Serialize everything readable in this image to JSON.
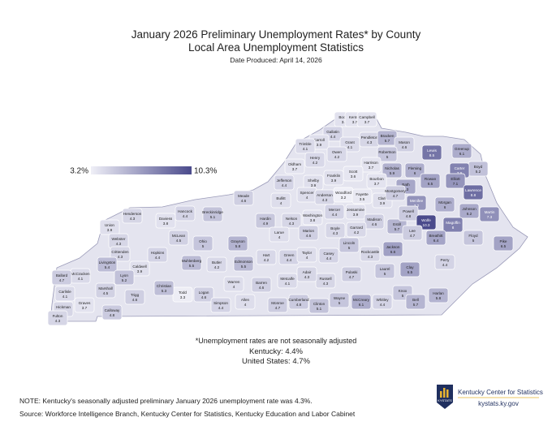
{
  "map": {
    "title": "January 2026 Preliminary Unemployment Rates* by County",
    "subtitle": "Local Area Unemployment Statistics",
    "date_produced": "Date Produced: April 14, 2026",
    "legend": {
      "min": {
        "value": 3.2,
        "label": "3.2%"
      },
      "max": {
        "value": 10.3,
        "label": "10.3%"
      },
      "low_color": "#efeff7",
      "high_color": "#4b4b8c"
    },
    "counties": [
      {
        "name": "Boone",
        "value": 3.8
      },
      {
        "name": "Kenton",
        "value": 3.7
      },
      {
        "name": "Campbell",
        "value": 3.7
      },
      {
        "name": "Gallatin",
        "value": 4.4
      },
      {
        "name": "Carroll",
        "value": 3.9
      },
      {
        "name": "Grant",
        "value": 4.1
      },
      {
        "name": "Pendleton",
        "value": 4.3
      },
      {
        "name": "Bracken",
        "value": 5.7
      },
      {
        "name": "Mason",
        "value": 4.6
      },
      {
        "name": "Trimble",
        "value": 4.1
      },
      {
        "name": "Owen",
        "value": 4.2
      },
      {
        "name": "Robertson",
        "value": 5.0
      },
      {
        "name": "Lewis",
        "value": 8.5
      },
      {
        "name": "Greenup",
        "value": 6.1
      },
      {
        "name": "Boyd",
        "value": 5.2
      },
      {
        "name": "Henry",
        "value": 4.2
      },
      {
        "name": "Oldham",
        "value": 3.7
      },
      {
        "name": "Harrison",
        "value": 3.7
      },
      {
        "name": "Nicholas",
        "value": 5.9
      },
      {
        "name": "Fleming",
        "value": 6.0
      },
      {
        "name": "Carter",
        "value": 7.9
      },
      {
        "name": "Scott",
        "value": 3.6
      },
      {
        "name": "Franklin",
        "value": 3.9
      },
      {
        "name": "Shelby",
        "value": 3.9
      },
      {
        "name": "Jefferson",
        "value": 4.4
      },
      {
        "name": "Bourbon",
        "value": 3.7
      },
      {
        "name": "Bath",
        "value": 6.3
      },
      {
        "name": "Rowan",
        "value": 6.5
      },
      {
        "name": "Elliott",
        "value": 7.1
      },
      {
        "name": "Lawrence",
        "value": 8.8
      },
      {
        "name": "Spencer",
        "value": 4.0
      },
      {
        "name": "Anderson",
        "value": 4.3
      },
      {
        "name": "Woodford",
        "value": 3.2
      },
      {
        "name": "Fayette",
        "value": 3.5
      },
      {
        "name": "Clark",
        "value": 3.9
      },
      {
        "name": "Montgomery",
        "value": 4.7
      },
      {
        "name": "Menifee",
        "value": 7.2
      },
      {
        "name": "Morgan",
        "value": 6.0
      },
      {
        "name": "Johnson",
        "value": 6.2
      },
      {
        "name": "Martin",
        "value": 7.3
      },
      {
        "name": "Meade",
        "value": 4.6
      },
      {
        "name": "Bullitt",
        "value": 4.0
      },
      {
        "name": "Breckinridge",
        "value": 5.1
      },
      {
        "name": "Hancock",
        "value": 4.4
      },
      {
        "name": "Daviess",
        "value": 3.8
      },
      {
        "name": "Henderson",
        "value": 4.3
      },
      {
        "name": "Union",
        "value": 3.9
      },
      {
        "name": "Hardin",
        "value": 4.9
      },
      {
        "name": "Nelson",
        "value": 4.3
      },
      {
        "name": "Washington",
        "value": 3.8
      },
      {
        "name": "Mercer",
        "value": 4.4
      },
      {
        "name": "Jessamine",
        "value": 3.9
      },
      {
        "name": "Madison",
        "value": 4.6
      },
      {
        "name": "Estill",
        "value": 5.7
      },
      {
        "name": "Powell",
        "value": 4.8
      },
      {
        "name": "Wolfe",
        "value": 10.3
      },
      {
        "name": "Magoffin",
        "value": 8.0
      },
      {
        "name": "Floyd",
        "value": 5.0
      },
      {
        "name": "Pike",
        "value": 6.5
      },
      {
        "name": "Breathitt",
        "value": 6.4
      },
      {
        "name": "Lee",
        "value": 4.7
      },
      {
        "name": "Garrard",
        "value": 4.2
      },
      {
        "name": "Boyle",
        "value": 4.3
      },
      {
        "name": "Marion",
        "value": 4.6
      },
      {
        "name": "Larue",
        "value": 4.0
      },
      {
        "name": "Grayson",
        "value": 5.8
      },
      {
        "name": "Ohio",
        "value": 5.0
      },
      {
        "name": "McLean",
        "value": 4.5
      },
      {
        "name": "Webster",
        "value": 4.3
      },
      {
        "name": "Hopkins",
        "value": 4.4
      },
      {
        "name": "Muhlenberg",
        "value": 5.5
      },
      {
        "name": "Crittenden",
        "value": 4.3
      },
      {
        "name": "Livingston",
        "value": 5.4
      },
      {
        "name": "Caldwell",
        "value": 3.9
      },
      {
        "name": "Lyon",
        "value": 5.2
      },
      {
        "name": "Butler",
        "value": 4.2
      },
      {
        "name": "Edmonson",
        "value": 5.5
      },
      {
        "name": "Hart",
        "value": 4.2
      },
      {
        "name": "Green",
        "value": 4.4
      },
      {
        "name": "Taylor",
        "value": 4.0
      },
      {
        "name": "Casey",
        "value": 4.4
      },
      {
        "name": "Lincoln",
        "value": 5.0
      },
      {
        "name": "Rockcastle",
        "value": 4.3
      },
      {
        "name": "Jackson",
        "value": 6.6
      },
      {
        "name": "Clay",
        "value": 6.5
      },
      {
        "name": "Laurel",
        "value": 5.0
      },
      {
        "name": "Pulaski",
        "value": 4.7
      },
      {
        "name": "Russell",
        "value": 4.3
      },
      {
        "name": "Adair",
        "value": 4.3
      },
      {
        "name": "Metcalfe",
        "value": 4.1
      },
      {
        "name": "Barren",
        "value": 4.6
      },
      {
        "name": "Warren",
        "value": 4.0
      },
      {
        "name": "Logan",
        "value": 4.6
      },
      {
        "name": "Todd",
        "value": 3.3
      },
      {
        "name": "Christian",
        "value": 5.3
      },
      {
        "name": "Trigg",
        "value": 4.6
      },
      {
        "name": "Marshall",
        "value": 4.5
      },
      {
        "name": "McCracken",
        "value": 4.1
      },
      {
        "name": "Ballard",
        "value": 4.7
      },
      {
        "name": "Carlisle",
        "value": 4.1
      },
      {
        "name": "Graves",
        "value": 3.7
      },
      {
        "name": "Calloway",
        "value": 4.8
      },
      {
        "name": "Hickman",
        "value": 4.3
      },
      {
        "name": "Fulton",
        "value": 4.3
      },
      {
        "name": "Simpson",
        "value": 4.4
      },
      {
        "name": "Allen",
        "value": 4.0
      },
      {
        "name": "Monroe",
        "value": 4.7
      },
      {
        "name": "Cumberland",
        "value": 4.8
      },
      {
        "name": "Clinton",
        "value": 5.1
      },
      {
        "name": "Wayne",
        "value": 5.0
      },
      {
        "name": "McCreary",
        "value": 6.1
      },
      {
        "name": "Whitley",
        "value": 4.4
      },
      {
        "name": "Knox",
        "value": 5.0
      },
      {
        "name": "Bell",
        "value": 5.7
      },
      {
        "name": "Harlan",
        "value": 5.8
      },
      {
        "name": "Perry",
        "value": 4.4
      }
    ],
    "footnote": "*Unemployment rates are not seasonally adjusted",
    "kentucky": "Kentucky: 4.4%",
    "united_states": "United States: 4.7%",
    "note": "NOTE: Kentucky's seasonally adjusted preliminary January 2026 unemployment rate was 4.3%.",
    "source": "Source: Workforce Intelligence Branch, Kentucky Center for Statistics, Kentucky Education and Labor Cabinet",
    "logo": {
      "badge": "KYSTATS",
      "name": "Kentucky Center for Statistics",
      "url": "kystats.ky.gov"
    }
  }
}
